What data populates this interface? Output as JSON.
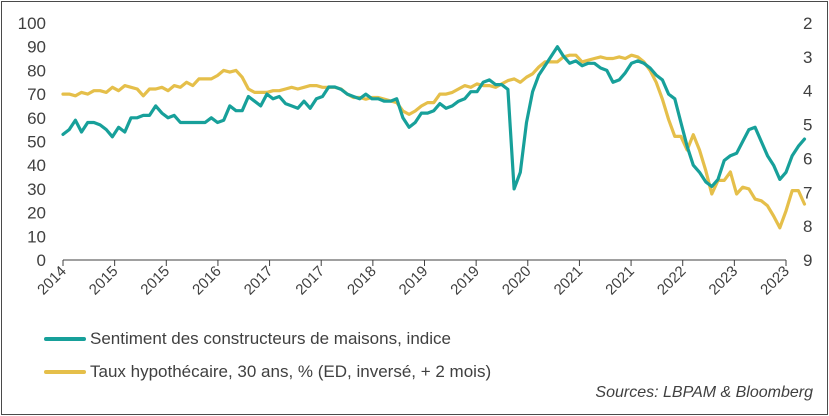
{
  "chart_data": {
    "type": "line",
    "title": "",
    "xlabel": "",
    "ylabel": "",
    "x_tick_labels": [
      "2014",
      "2015",
      "2015",
      "2016",
      "2017",
      "2017",
      "2018",
      "2019",
      "2019",
      "2020",
      "2021",
      "2021",
      "2022",
      "2023",
      "2023"
    ],
    "x_range": [
      2014.0,
      2023.75
    ],
    "left_axis": {
      "range": [
        0,
        100
      ],
      "ticks": [
        0,
        10,
        20,
        30,
        40,
        50,
        60,
        70,
        80,
        90,
        100
      ]
    },
    "right_axis": {
      "range": [
        2,
        9
      ],
      "inverted": true,
      "ticks": [
        2,
        3,
        4,
        5,
        6,
        7,
        8,
        9
      ]
    },
    "grid": false,
    "legend_position": "bottom-left",
    "series": [
      {
        "name": "Sentiment des constructeurs de maisons, indice",
        "axis": "left",
        "color": "#17a09a",
        "x_start": 2014.0,
        "step": 0.0833333,
        "values": [
          53,
          55,
          59,
          54,
          58,
          58,
          57,
          55,
          52,
          56,
          54,
          60,
          60,
          61,
          61,
          65,
          62,
          60,
          61,
          58,
          58,
          58,
          58,
          58,
          60,
          58,
          59,
          65,
          63,
          63,
          69,
          67,
          65,
          70,
          68,
          69,
          66,
          65,
          64,
          67,
          64,
          68,
          69,
          73,
          73,
          72,
          70,
          69,
          68,
          70,
          68,
          68,
          67,
          67,
          68,
          60,
          56,
          58,
          62,
          62,
          63,
          66,
          64,
          65,
          67,
          68,
          71,
          71,
          75,
          76,
          74,
          74,
          72,
          30,
          37,
          58,
          71,
          78,
          82,
          86,
          90,
          86,
          83,
          84,
          82,
          83,
          83,
          81,
          80,
          75,
          76,
          79,
          83,
          84,
          83,
          81,
          78,
          76,
          70,
          68,
          58,
          48,
          40,
          37,
          33,
          31,
          34,
          42,
          44,
          45,
          50,
          55,
          56,
          50,
          44,
          40,
          34,
          37,
          44,
          48,
          51
        ],
        "values_shown_by": "line position"
      },
      {
        "name": "Taux hypothécaire, 30 ans, % (ED, inversé, + 2 mois)",
        "axis": "right",
        "color": "#e5bf4a",
        "x_start": 2014.0,
        "step": 0.0833333,
        "values": [
          4.1,
          4.1,
          4.15,
          4.05,
          4.1,
          4.0,
          4.0,
          4.05,
          3.9,
          4.0,
          3.85,
          3.9,
          3.95,
          4.15,
          3.95,
          3.95,
          3.9,
          4.0,
          3.85,
          3.9,
          3.75,
          3.85,
          3.65,
          3.65,
          3.65,
          3.55,
          3.4,
          3.45,
          3.4,
          3.6,
          3.95,
          4.05,
          4.05,
          4.05,
          4.0,
          4.0,
          3.95,
          3.9,
          3.95,
          3.9,
          3.85,
          3.85,
          3.9,
          3.9,
          3.9,
          3.95,
          4.1,
          4.2,
          4.2,
          4.25,
          4.2,
          4.2,
          4.25,
          4.3,
          4.35,
          4.6,
          4.7,
          4.6,
          4.45,
          4.35,
          4.35,
          4.1,
          4.1,
          4.05,
          3.95,
          3.85,
          3.9,
          3.8,
          3.85,
          3.85,
          3.9,
          3.8,
          3.7,
          3.65,
          3.75,
          3.6,
          3.5,
          3.3,
          3.15,
          3.15,
          3.15,
          3.0,
          2.95,
          2.95,
          3.15,
          3.1,
          3.05,
          3.0,
          3.05,
          3.05,
          3.0,
          3.05,
          2.95,
          3.0,
          3.15,
          3.4,
          3.75,
          4.25,
          4.85,
          5.35,
          5.35,
          5.75,
          5.3,
          5.75,
          6.35,
          7.05,
          6.65,
          6.65,
          6.4,
          7.05,
          6.85,
          6.9,
          7.2,
          7.25,
          7.4,
          7.7,
          8.05,
          7.55,
          6.95,
          6.95,
          7.35
        ],
        "values_shown_by": "line position"
      }
    ],
    "source": "Sources: LBPAM & Bloomberg"
  }
}
